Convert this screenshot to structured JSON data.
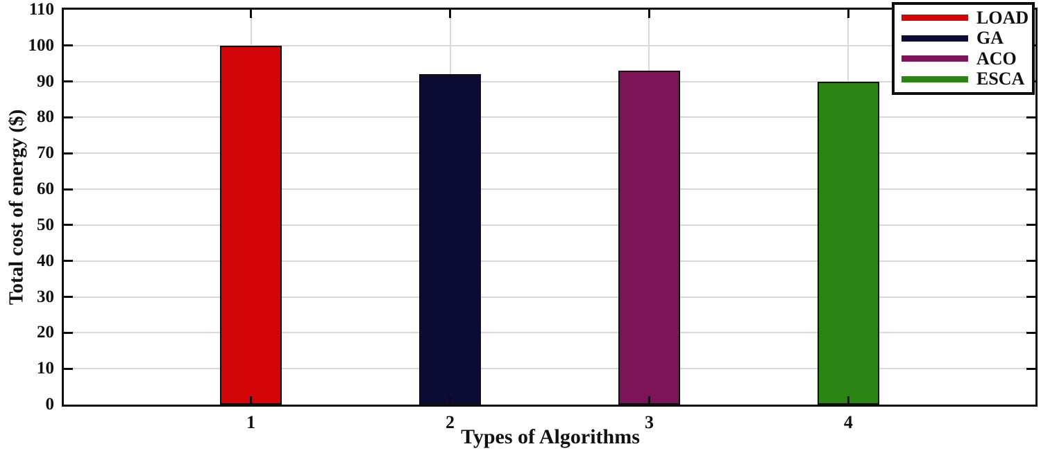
{
  "chart_data": {
    "type": "bar",
    "title": "",
    "xlabel": "Types of Algorithms",
    "ylabel": "Total cost of energy ($)",
    "categories": [
      "1",
      "2",
      "3",
      "4"
    ],
    "series": [
      {
        "name": "LOAD",
        "x": 1,
        "value": 100,
        "color": "#d40508"
      },
      {
        "name": "GA",
        "x": 2,
        "value": 92,
        "color": "#0b0b35"
      },
      {
        "name": "ACO",
        "x": 3,
        "value": 93,
        "color": "#7d1457"
      },
      {
        "name": "ESCA",
        "x": 4,
        "value": 90,
        "color": "#2b8413"
      }
    ],
    "xlim": [
      0.06,
      4.94
    ],
    "ylim": [
      0,
      110
    ],
    "ytick_step": 10,
    "bar_width_x": 0.31,
    "grid": true,
    "legend_position": "top-right",
    "grid_color": "#d8d8d8",
    "axis_color": "#0d0d0d",
    "bar_edge_color": "#101010"
  }
}
